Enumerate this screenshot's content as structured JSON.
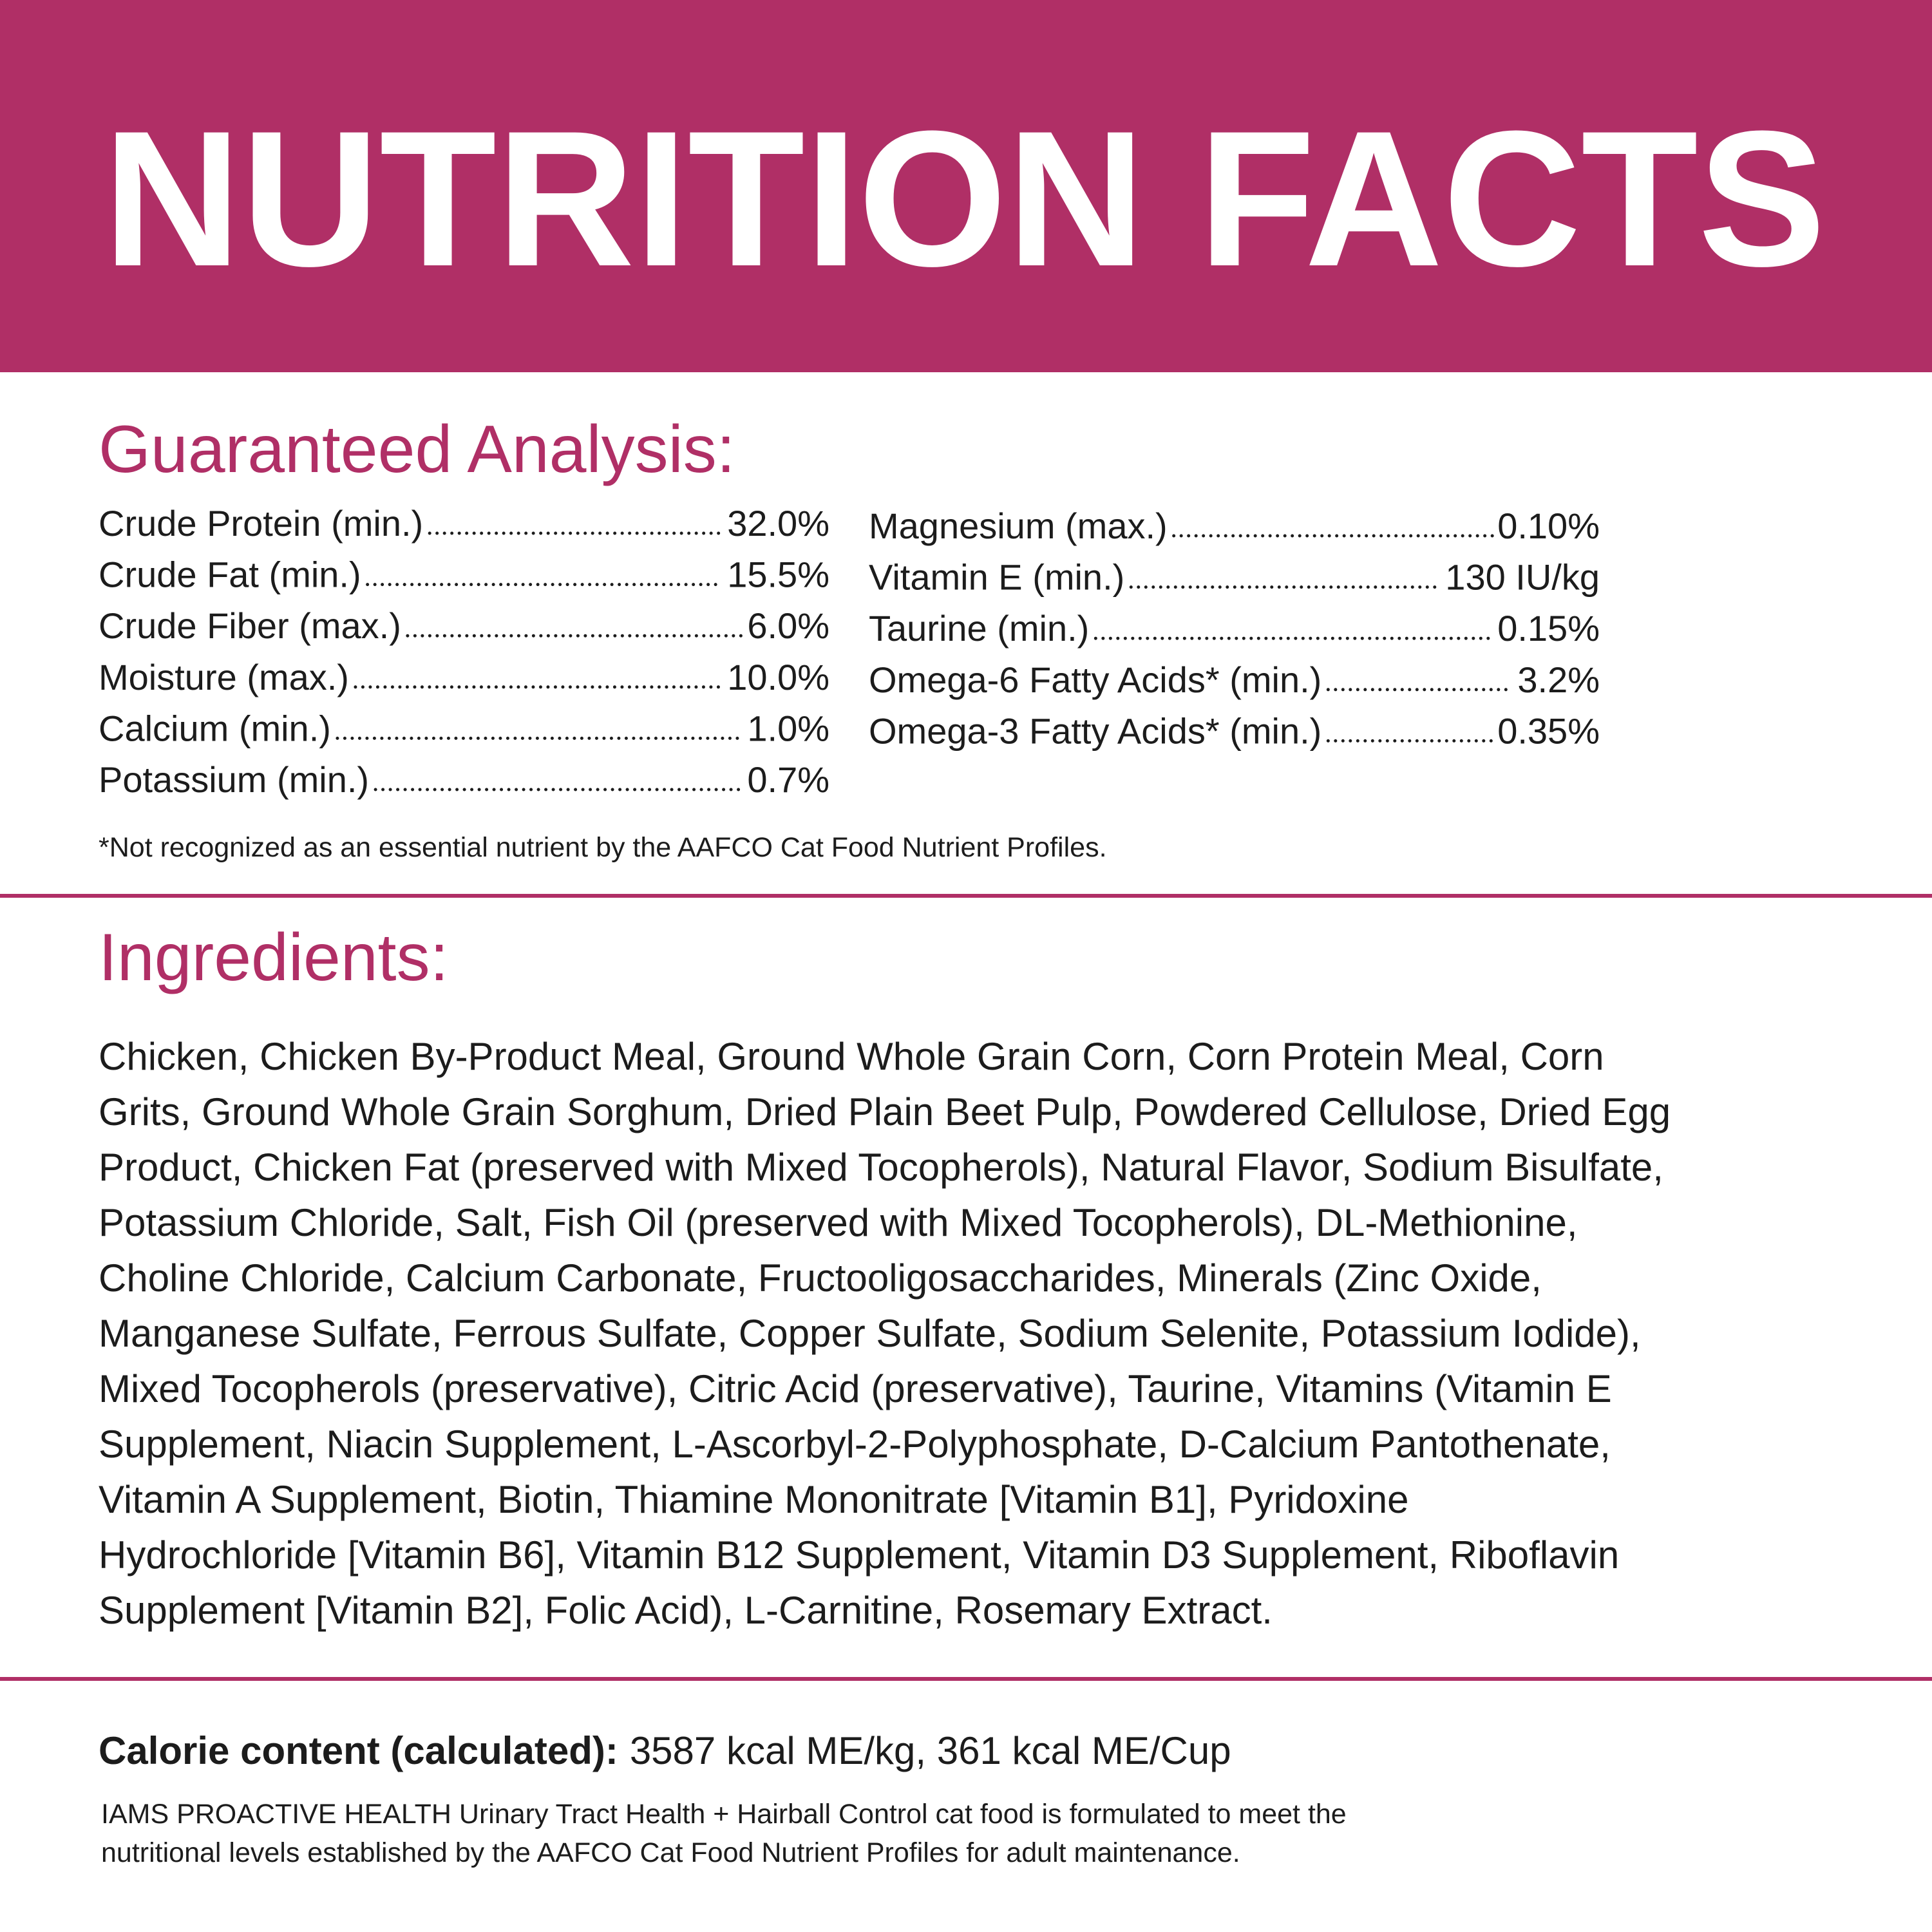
{
  "header": {
    "title": "NUTRITION FACTS"
  },
  "analysis": {
    "title": "Guaranteed Analysis:",
    "left": [
      {
        "label": "Crude Protein (min.)",
        "value": "32.0%"
      },
      {
        "label": "Crude Fat (min.)",
        "value": "15.5%"
      },
      {
        "label": "Crude Fiber (max.)",
        "value": "6.0%"
      },
      {
        "label": "Moisture (max.)",
        "value": "10.0%"
      },
      {
        "label": "Calcium (min.)",
        "value": "1.0%"
      },
      {
        "label": "Potassium (min.)",
        "value": "0.7%"
      }
    ],
    "right": [
      {
        "label": "Magnesium (max.)",
        "value": "0.10%"
      },
      {
        "label": "Vitamin E (min.)",
        "value": "130 IU/kg"
      },
      {
        "label": "Taurine (min.)",
        "value": "0.15%"
      },
      {
        "label": "Omega-6 Fatty Acids* (min.)",
        "value": "3.2%"
      },
      {
        "label": "Omega-3 Fatty Acids* (min.)",
        "value": "0.35%"
      }
    ],
    "footnote": "*Not recognized as an essential nutrient by the AAFCO Cat Food Nutrient Profiles."
  },
  "ingredients": {
    "title": "Ingredients:",
    "lines": [
      "Chicken, Chicken By-Product Meal, Ground Whole Grain Corn, Corn Protein Meal, Corn",
      "Grits, Ground Whole Grain Sorghum, Dried Plain Beet Pulp, Powdered Cellulose, Dried Egg",
      "Product, Chicken Fat (preserved with Mixed Tocopherols), Natural Flavor, Sodium Bisulfate,",
      "Potassium Chloride, Salt, Fish Oil (preserved with Mixed Tocopherols), DL-Methionine,",
      "Choline Chloride, Calcium Carbonate, Fructooligosaccharides, Minerals (Zinc Oxide,",
      "Manganese Sulfate, Ferrous Sulfate, Copper Sulfate, Sodium Selenite, Potassium Iodide),",
      "Mixed Tocopherols (preservative), Citric Acid (preservative), Taurine, Vitamins (Vitamin E",
      "Supplement, Niacin Supplement, L-Ascorbyl-2-Polyphosphate, D-Calcium Pantothenate,",
      "Vitamin A Supplement, Biotin, Thiamine Mononitrate [Vitamin B1], Pyridoxine",
      "Hydrochloride [Vitamin B6], Vitamin B12 Supplement, Vitamin D3 Supplement, Riboflavin",
      "Supplement [Vitamin B2], Folic Acid), L-Carnitine, Rosemary Extract."
    ]
  },
  "calorie": {
    "label": "Calorie content (calculated):",
    "text": "3587 kcal ME/kg, 361 kcal ME/Cup"
  },
  "statement": {
    "lines": [
      "IAMS PROACTIVE HEALTH Urinary Tract Health + Hairball Control cat food is formulated to meet the",
      "nutritional levels established by the AAFCO Cat Food Nutrient Profiles for adult maintenance."
    ]
  }
}
